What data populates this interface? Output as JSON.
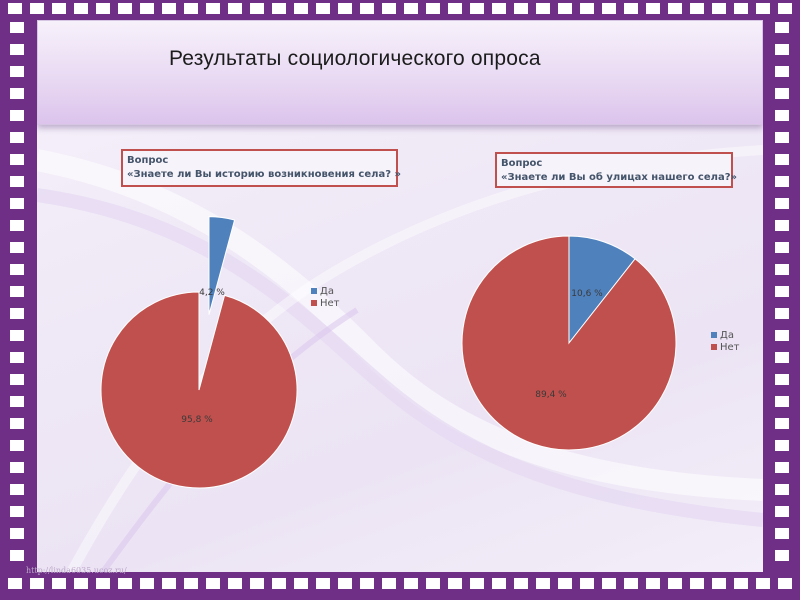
{
  "slide": {
    "title": "Результаты социологического опроса",
    "source_url": "http://linda6035.ucoz.ru/"
  },
  "colors": {
    "frame": "#6f2f86",
    "yes": "#4f81bd",
    "no": "#c0504d",
    "box_border": "#c0504d"
  },
  "chart_data": [
    {
      "type": "pie",
      "question_label": "Вопрос",
      "question_text": "«Знаете ли Вы историю возникновения села? »",
      "categories": [
        "Да",
        "Нет"
      ],
      "values": [
        4.2,
        95.8
      ],
      "data_labels": [
        "4,2 %",
        "95,8 %"
      ],
      "exploded": "Да",
      "legend_position": "right"
    },
    {
      "type": "pie",
      "question_label": "Вопрос",
      "question_text": "«Знаете ли Вы об улицах нашего села?»",
      "categories": [
        "Да",
        "Нет"
      ],
      "values": [
        10.6,
        89.4
      ],
      "data_labels": [
        "10,6 %",
        "89,4 %"
      ],
      "legend_position": "right"
    }
  ]
}
